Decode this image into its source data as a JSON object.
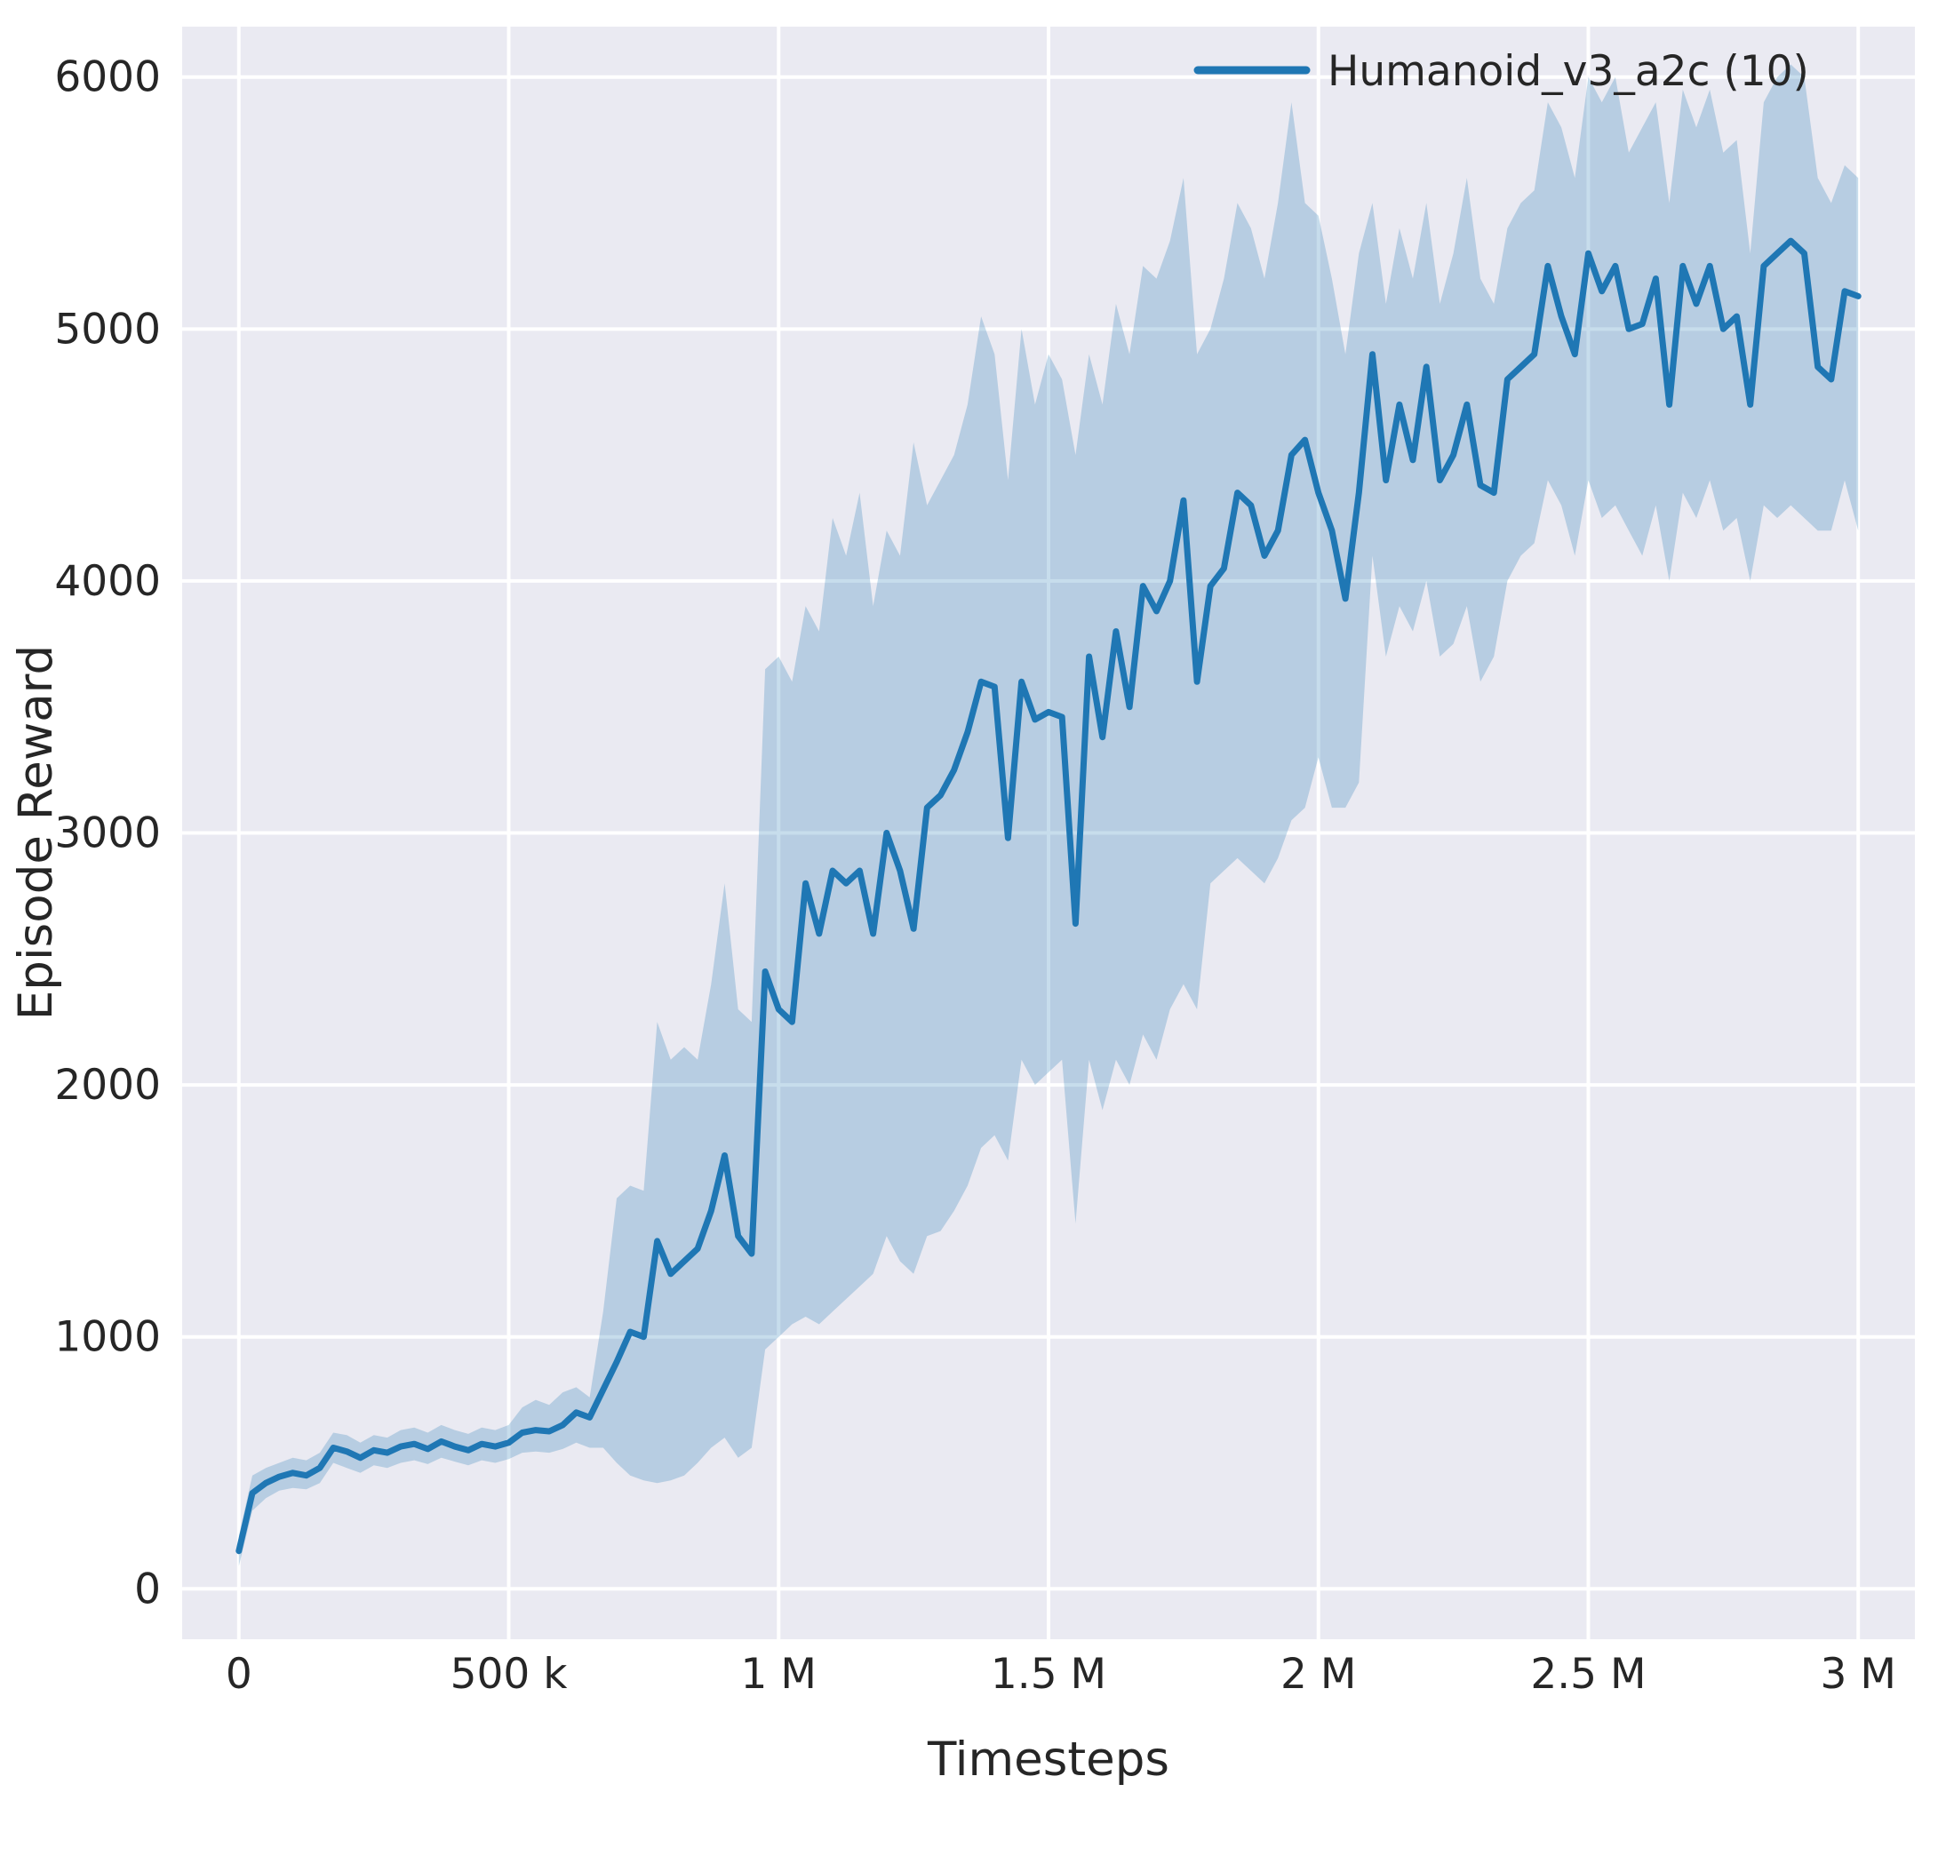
{
  "figure": {
    "background": "#ffffff",
    "plot_background": "#eaeaf2",
    "grid_color": "#ffffff",
    "text_color": "#262626"
  },
  "chart_data": {
    "type": "line",
    "title": "",
    "xlabel": "Timesteps",
    "ylabel": "Episode Reward",
    "xlim": [
      -105000,
      3105000
    ],
    "ylim": [
      -200,
      6200
    ],
    "grid": true,
    "legend_position": "upper right",
    "x_ticks": [
      {
        "value": 0,
        "label": "0"
      },
      {
        "value": 500000,
        "label": "500 k"
      },
      {
        "value": 1000000,
        "label": "1 M"
      },
      {
        "value": 1500000,
        "label": "1.5 M"
      },
      {
        "value": 2000000,
        "label": "2 M"
      },
      {
        "value": 2500000,
        "label": "2.5 M"
      },
      {
        "value": 3000000,
        "label": "3 M"
      }
    ],
    "y_ticks": [
      {
        "value": 0,
        "label": "0"
      },
      {
        "value": 1000,
        "label": "1000"
      },
      {
        "value": 2000,
        "label": "2000"
      },
      {
        "value": 3000,
        "label": "3000"
      },
      {
        "value": 4000,
        "label": "4000"
      },
      {
        "value": 5000,
        "label": "5000"
      },
      {
        "value": 6000,
        "label": "6000"
      }
    ],
    "legend": [
      {
        "label": "Humanoid_v3_a2c (10)",
        "color": "#1f77b4"
      }
    ],
    "series": [
      {
        "name": "Humanoid_v3_a2c (10)",
        "color": "#1f77b4",
        "band_opacity": 0.25,
        "x": [
          0,
          25000,
          50000,
          75000,
          100000,
          125000,
          150000,
          175000,
          200000,
          225000,
          250000,
          275000,
          300000,
          325000,
          350000,
          375000,
          400000,
          425000,
          450000,
          475000,
          500000,
          525000,
          550000,
          575000,
          600000,
          625000,
          650000,
          675000,
          700000,
          725000,
          750000,
          775000,
          800000,
          825000,
          850000,
          875000,
          900000,
          925000,
          950000,
          975000,
          1000000,
          1025000,
          1050000,
          1075000,
          1100000,
          1125000,
          1150000,
          1175000,
          1200000,
          1225000,
          1250000,
          1275000,
          1300000,
          1325000,
          1350000,
          1375000,
          1400000,
          1425000,
          1450000,
          1475000,
          1500000,
          1525000,
          1550000,
          1575000,
          1600000,
          1625000,
          1650000,
          1675000,
          1700000,
          1725000,
          1750000,
          1775000,
          1800000,
          1825000,
          1850000,
          1875000,
          1900000,
          1925000,
          1950000,
          1975000,
          2000000,
          2025000,
          2050000,
          2075000,
          2100000,
          2125000,
          2150000,
          2175000,
          2200000,
          2225000,
          2250000,
          2275000,
          2300000,
          2325000,
          2350000,
          2375000,
          2400000,
          2425000,
          2450000,
          2475000,
          2500000,
          2525000,
          2550000,
          2575000,
          2600000,
          2625000,
          2650000,
          2675000,
          2700000,
          2725000,
          2750000,
          2775000,
          2800000,
          2825000,
          2850000,
          2875000,
          2900000,
          2925000,
          2950000,
          2975000,
          3000000
        ],
        "mean": [
          150,
          380,
          420,
          445,
          460,
          450,
          480,
          560,
          545,
          520,
          550,
          540,
          565,
          575,
          555,
          585,
          565,
          550,
          575,
          565,
          580,
          620,
          630,
          625,
          650,
          700,
          680,
          790,
          900,
          1020,
          1000,
          1380,
          1250,
          1300,
          1350,
          1500,
          1720,
          1400,
          1330,
          2450,
          2300,
          2250,
          2800,
          2600,
          2850,
          2800,
          2850,
          2600,
          3000,
          2850,
          2620,
          3100,
          3150,
          3250,
          3400,
          3600,
          3580,
          2980,
          3600,
          3450,
          3480,
          3460,
          2640,
          3700,
          3380,
          3800,
          3500,
          3980,
          3880,
          4000,
          4320,
          3600,
          3980,
          4050,
          4350,
          4300,
          4100,
          4200,
          4500,
          4560,
          4350,
          4200,
          3930,
          4350,
          4900,
          4400,
          4700,
          4480,
          4850,
          4400,
          4500,
          4700,
          4380,
          4350,
          4800,
          4850,
          4900,
          5250,
          5050,
          4900,
          5300,
          5150,
          5250,
          5000,
          5020,
          5200,
          4700,
          5250,
          5100,
          5250,
          5000,
          5050,
          4700,
          5250,
          5300,
          5350,
          5300,
          4850,
          4800,
          5150,
          5130
        ],
        "lower": [
          90,
          310,
          360,
          390,
          400,
          395,
          420,
          500,
          480,
          460,
          490,
          480,
          500,
          510,
          495,
          520,
          505,
          490,
          510,
          500,
          515,
          540,
          545,
          540,
          555,
          580,
          560,
          560,
          500,
          450,
          430,
          420,
          430,
          450,
          500,
          560,
          600,
          520,
          560,
          950,
          1000,
          1050,
          1080,
          1050,
          1100,
          1150,
          1200,
          1250,
          1400,
          1300,
          1250,
          1400,
          1420,
          1500,
          1600,
          1750,
          1800,
          1700,
          2100,
          2000,
          2050,
          2100,
          1450,
          2100,
          1900,
          2100,
          2000,
          2200,
          2100,
          2300,
          2400,
          2300,
          2800,
          2850,
          2900,
          2850,
          2800,
          2900,
          3050,
          3100,
          3300,
          3100,
          3100,
          3200,
          4100,
          3700,
          3900,
          3800,
          4000,
          3700,
          3750,
          3900,
          3600,
          3700,
          4000,
          4100,
          4150,
          4400,
          4300,
          4100,
          4400,
          4250,
          4300,
          4200,
          4100,
          4300,
          4000,
          4350,
          4250,
          4400,
          4200,
          4250,
          4000,
          4300,
          4250,
          4300,
          4250,
          4200,
          4200,
          4400,
          4200
        ],
        "upper": [
          210,
          450,
          480,
          500,
          520,
          510,
          540,
          620,
          610,
          580,
          610,
          600,
          630,
          640,
          620,
          650,
          630,
          615,
          640,
          630,
          650,
          720,
          750,
          730,
          780,
          800,
          760,
          1100,
          1550,
          1600,
          1580,
          2250,
          2100,
          2150,
          2100,
          2400,
          2800,
          2300,
          2250,
          3650,
          3700,
          3600,
          3900,
          3800,
          4250,
          4100,
          4350,
          3900,
          4200,
          4100,
          4550,
          4300,
          4400,
          4500,
          4700,
          5050,
          4900,
          4400,
          5000,
          4700,
          4900,
          4800,
          4500,
          4900,
          4700,
          5100,
          4900,
          5250,
          5200,
          5350,
          5600,
          4900,
          5000,
          5200,
          5500,
          5400,
          5200,
          5500,
          5900,
          5500,
          5450,
          5200,
          4900,
          5300,
          5500,
          5100,
          5400,
          5200,
          5500,
          5100,
          5300,
          5600,
          5200,
          5100,
          5400,
          5500,
          5550,
          5900,
          5800,
          5600,
          6000,
          5900,
          6000,
          5700,
          5800,
          5900,
          5500,
          5950,
          5800,
          5950,
          5700,
          5750,
          5300,
          5900,
          6000,
          6050,
          6000,
          5600,
          5500,
          5650,
          5600
        ]
      }
    ]
  }
}
